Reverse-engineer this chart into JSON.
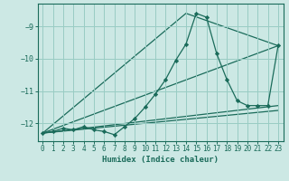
{
  "xlabel": "Humidex (Indice chaleur)",
  "background_color": "#cce8e4",
  "grid_color": "#99ccc4",
  "line_color": "#1a6b5a",
  "xlim": [
    -0.5,
    23.5
  ],
  "ylim": [
    -12.55,
    -8.3
  ],
  "xticks": [
    0,
    1,
    2,
    3,
    4,
    5,
    6,
    7,
    8,
    9,
    10,
    11,
    12,
    13,
    14,
    15,
    16,
    17,
    18,
    19,
    20,
    21,
    22,
    23
  ],
  "yticks": [
    -12,
    -11,
    -10,
    -9
  ],
  "main_series": {
    "x": [
      0,
      1,
      2,
      3,
      4,
      5,
      6,
      7,
      8,
      9,
      10,
      11,
      12,
      13,
      14,
      15,
      16,
      17,
      18,
      19,
      20,
      21,
      22,
      23
    ],
    "y": [
      -12.3,
      -12.25,
      -12.15,
      -12.2,
      -12.1,
      -12.2,
      -12.25,
      -12.35,
      -12.1,
      -11.85,
      -11.5,
      -11.1,
      -10.65,
      -10.05,
      -9.55,
      -8.6,
      -8.72,
      -9.85,
      -10.65,
      -11.3,
      -11.45,
      -11.45,
      -11.45,
      -9.6
    ]
  },
  "ref_lines": [
    {
      "x": [
        0,
        23
      ],
      "y": [
        -12.3,
        -9.6
      ]
    },
    {
      "x": [
        0,
        14,
        23
      ],
      "y": [
        -12.3,
        -8.6,
        -9.6
      ]
    },
    {
      "x": [
        0,
        23
      ],
      "y": [
        -12.3,
        -11.45
      ]
    },
    {
      "x": [
        0,
        23
      ],
      "y": [
        -12.3,
        -11.6
      ]
    }
  ]
}
